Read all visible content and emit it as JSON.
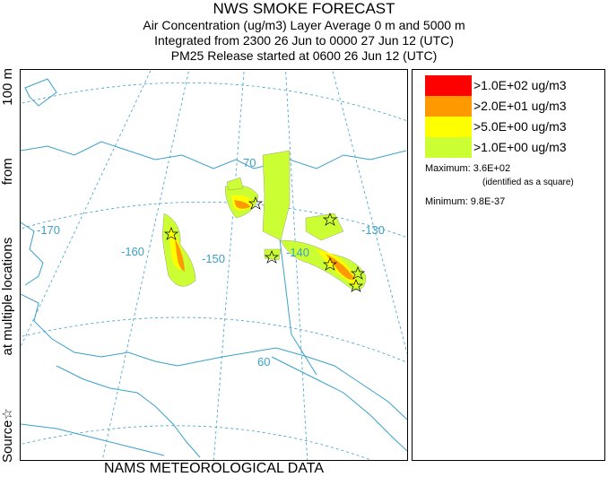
{
  "header": {
    "title": "NWS SMOKE FORECAST",
    "line1": "Air Concentration (ug/m3) Layer Average    0 m and  5000 m",
    "line2": "Integrated from 2300 26 Jun to 0000 27 Jun 12 (UTC)",
    "line3": "PM25 Release started at 0600 26 Jun 12 (UTC)"
  },
  "side_label": {
    "part1": "Source",
    "star_glyph": "☆",
    "part2": "at multiple locations",
    "part3": "from",
    "part4": "100 m"
  },
  "map": {
    "graticule_labels": [
      "-170",
      "-160",
      "-150",
      "-140",
      "-130",
      "70",
      "60"
    ],
    "colors": {
      "coast": "#3aa0c8",
      "graticule": "#3aa0c8",
      "border": "#3aa0c8",
      "level_high": "#ff0000",
      "level_mid_high": "#ff9900",
      "level_mid": "#ffff00",
      "level_low": "#ccff33"
    },
    "source_marker_icon": "star-outline-icon"
  },
  "legend": {
    "items": [
      {
        "label": ">1.0E+02 ug/m3",
        "color": "#ff0000"
      },
      {
        "label": ">2.0E+01 ug/m3",
        "color": "#ff9900"
      },
      {
        "label": ">5.0E+00 ug/m3",
        "color": "#ffff00"
      },
      {
        "label": ">1.0E+00 ug/m3",
        "color": "#ccff33"
      }
    ],
    "maximum": "Maximum: 3.6E+02",
    "maximum_note": "(identified as a square)",
    "minimum": "Minimum: 9.8E-37"
  },
  "footer": "NAMS METEOROLOGICAL DATA"
}
